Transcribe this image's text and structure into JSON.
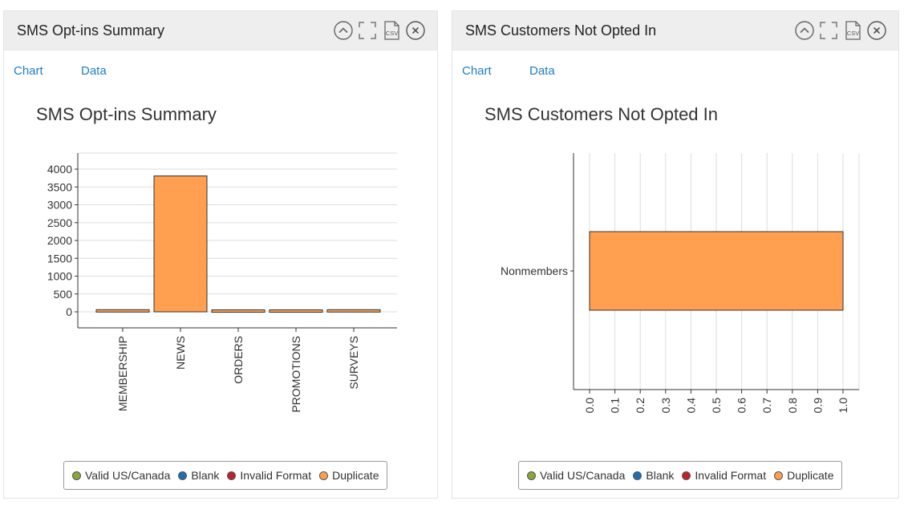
{
  "panels": [
    {
      "title": "SMS Opt-ins Summary",
      "tabs": [
        "Chart",
        "Data"
      ],
      "legend": [
        {
          "label": "Valid US/Canada",
          "color": "#8aa835"
        },
        {
          "label": "Blank",
          "color": "#1f6fb0"
        },
        {
          "label": "Invalid Format",
          "color": "#c0202a"
        },
        {
          "label": "Duplicate",
          "color": "#ff9f4f"
        }
      ],
      "chart_data": {
        "type": "bar",
        "title": "SMS Opt-ins Summary",
        "categories": [
          "MEMBERSHIP",
          "NEWS",
          "ORDERS",
          "PROMOTIONS",
          "SURVEYS"
        ],
        "series": [
          {
            "name": "Duplicate",
            "color": "#ff9f4f",
            "values": [
              60,
              3810,
              55,
              55,
              60
            ]
          }
        ],
        "yticks": [
          "0",
          "500",
          "1000",
          "1500",
          "2000",
          "2500",
          "3000",
          "3500",
          "4000"
        ],
        "ylim": [
          0,
          4000
        ],
        "grid": true
      }
    },
    {
      "title": "SMS Customers Not Opted In",
      "tabs": [
        "Chart",
        "Data"
      ],
      "legend": [
        {
          "label": "Valid US/Canada",
          "color": "#8aa835"
        },
        {
          "label": "Blank",
          "color": "#1f6fb0"
        },
        {
          "label": "Invalid Format",
          "color": "#c0202a"
        },
        {
          "label": "Duplicate",
          "color": "#ff9f4f"
        }
      ],
      "chart_data": {
        "type": "bar",
        "orientation": "horizontal",
        "title": "SMS Customers Not Opted In",
        "categories": [
          "Nonmembers"
        ],
        "series": [
          {
            "name": "Duplicate",
            "color": "#ff9f4f",
            "values": [
              1.0
            ]
          }
        ],
        "xticks": [
          "0.0",
          "0.1",
          "0.2",
          "0.3",
          "0.4",
          "0.5",
          "0.6",
          "0.7",
          "0.8",
          "0.9",
          "1.0"
        ],
        "xlim": [
          0,
          1
        ],
        "grid": true
      }
    }
  ]
}
